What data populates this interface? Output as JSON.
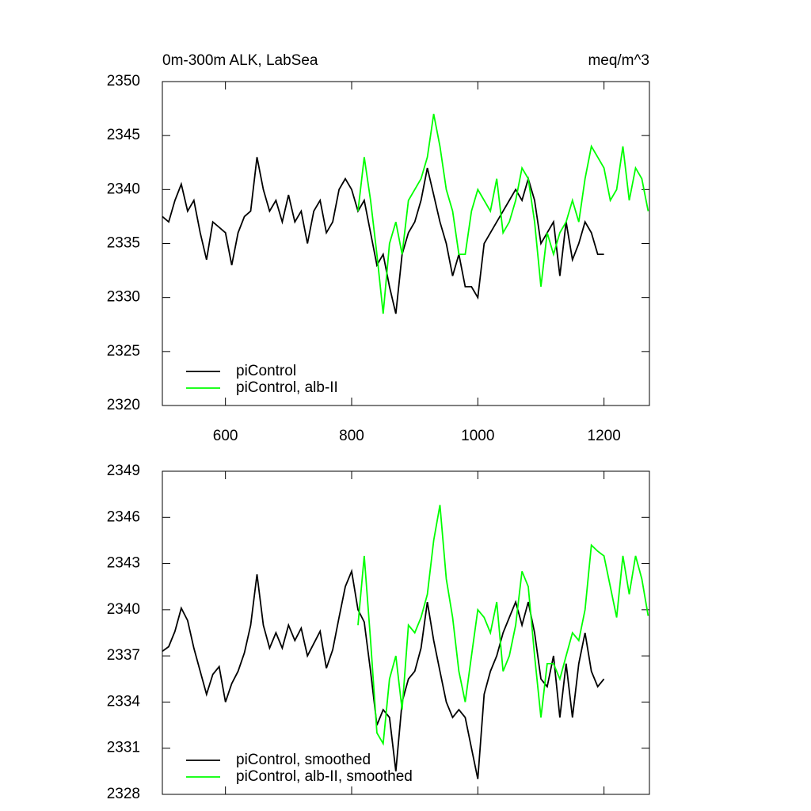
{
  "chart_data": [
    {
      "type": "line",
      "title": "0m-300m ALK, LabSea",
      "units_label": "meq/m^3",
      "xlim": [
        500,
        1272
      ],
      "xticks": [
        600,
        800,
        1000,
        1200
      ],
      "xtick_labels": true,
      "ylim": [
        2320,
        2350
      ],
      "yticks": [
        2320,
        2325,
        2330,
        2335,
        2340,
        2345,
        2350
      ],
      "legend": "lower left",
      "series": [
        {
          "name": "piControl",
          "color": "#000000",
          "x": [
            500,
            510,
            520,
            530,
            540,
            550,
            560,
            570,
            580,
            590,
            600,
            610,
            620,
            630,
            640,
            650,
            660,
            670,
            680,
            690,
            700,
            710,
            720,
            730,
            740,
            750,
            760,
            770,
            780,
            790,
            800,
            810,
            820,
            830,
            840,
            850,
            860,
            870,
            880,
            890,
            900,
            910,
            920,
            930,
            940,
            950,
            960,
            970,
            980,
            990,
            1000,
            1010,
            1020,
            1030,
            1040,
            1050,
            1060,
            1070,
            1080,
            1090,
            1100,
            1110,
            1120,
            1130,
            1140,
            1150,
            1160,
            1170,
            1180,
            1190,
            1200
          ],
          "values": [
            2337.5,
            2337,
            2339,
            2340.5,
            2338,
            2339,
            2336,
            2333.5,
            2337,
            2336.5,
            2336,
            2333,
            2336,
            2337.5,
            2338,
            2343,
            2340,
            2338,
            2339,
            2337,
            2339.5,
            2337,
            2338,
            2335,
            2338,
            2339,
            2336,
            2337,
            2340,
            2341,
            2340,
            2338,
            2339,
            2336,
            2333,
            2334,
            2331,
            2328.5,
            2334,
            2336,
            2337,
            2339,
            2342,
            2339.5,
            2337,
            2335,
            2332,
            2334,
            2331,
            2331,
            2330,
            2335,
            2336,
            2337,
            2338,
            2339,
            2340,
            2339,
            2341,
            2339,
            2335,
            2336,
            2337,
            2332,
            2337,
            2333.5,
            2335,
            2337,
            2336,
            2334,
            2334
          ]
        },
        {
          "name": "piControl, alb-II",
          "color": "#00ff00",
          "x": [
            810,
            820,
            830,
            840,
            850,
            860,
            870,
            880,
            890,
            900,
            910,
            920,
            930,
            940,
            950,
            960,
            970,
            980,
            990,
            1000,
            1010,
            1020,
            1030,
            1040,
            1050,
            1060,
            1070,
            1080,
            1090,
            1100,
            1110,
            1120,
            1130,
            1140,
            1150,
            1160,
            1170,
            1180,
            1190,
            1200,
            1210,
            1220,
            1230,
            1240,
            1250,
            1260,
            1270
          ],
          "values": [
            2338,
            2343,
            2339,
            2334,
            2328.5,
            2335,
            2337,
            2334,
            2339,
            2340,
            2341,
            2343,
            2347,
            2344,
            2340,
            2338,
            2334,
            2334,
            2338,
            2340,
            2339,
            2338,
            2341,
            2336,
            2337,
            2339,
            2342,
            2341,
            2337,
            2331,
            2336,
            2334,
            2336,
            2337,
            2339,
            2337,
            2341,
            2344,
            2343,
            2342,
            2339,
            2340,
            2344,
            2339,
            2342,
            2341,
            2338
          ]
        }
      ]
    },
    {
      "type": "line",
      "xlim": [
        500,
        1272
      ],
      "xticks": [
        600,
        800,
        1000,
        1200
      ],
      "xtick_labels": false,
      "ylim": [
        2328,
        2349
      ],
      "yticks": [
        2328,
        2331,
        2334,
        2337,
        2340,
        2343,
        2346,
        2349
      ],
      "legend": "lower left",
      "series": [
        {
          "name": "piControl, smoothed",
          "color": "#000000",
          "x": [
            500,
            510,
            520,
            530,
            540,
            550,
            560,
            570,
            580,
            590,
            600,
            610,
            620,
            630,
            640,
            650,
            660,
            670,
            680,
            690,
            700,
            710,
            720,
            730,
            740,
            750,
            760,
            770,
            780,
            790,
            800,
            810,
            820,
            830,
            840,
            850,
            860,
            870,
            880,
            890,
            900,
            910,
            920,
            930,
            940,
            950,
            960,
            970,
            980,
            990,
            1000,
            1010,
            1020,
            1030,
            1040,
            1050,
            1060,
            1070,
            1080,
            1090,
            1100,
            1110,
            1120,
            1130,
            1140,
            1150,
            1160,
            1170,
            1180,
            1190,
            1200
          ],
          "values": [
            2337.3,
            2337.6,
            2338.6,
            2340.1,
            2339.3,
            2337.5,
            2336,
            2334.5,
            2335.8,
            2336.3,
            2334,
            2335.2,
            2336,
            2337.2,
            2339,
            2342.3,
            2339,
            2337.5,
            2338.5,
            2337.5,
            2339,
            2338,
            2338.8,
            2337,
            2337.8,
            2338.6,
            2336.2,
            2337.4,
            2339.5,
            2341.5,
            2342.5,
            2340,
            2339.2,
            2336,
            2332.5,
            2333.5,
            2333,
            2329.5,
            2334,
            2335.5,
            2336,
            2337.5,
            2340.5,
            2338,
            2336,
            2334,
            2333,
            2333.5,
            2333,
            2331,
            2329,
            2334.5,
            2336,
            2337,
            2338.5,
            2339.5,
            2340.5,
            2339,
            2340.5,
            2338.5,
            2335.5,
            2335,
            2337,
            2333,
            2336.5,
            2333,
            2336.5,
            2338.5,
            2336,
            2335,
            2335.5
          ]
        },
        {
          "name": "piControl, alb-II, smoothed",
          "color": "#00ff00",
          "x": [
            810,
            820,
            830,
            840,
            850,
            860,
            870,
            880,
            890,
            900,
            910,
            920,
            930,
            940,
            950,
            960,
            970,
            980,
            990,
            1000,
            1010,
            1020,
            1030,
            1040,
            1050,
            1060,
            1070,
            1080,
            1090,
            1100,
            1110,
            1120,
            1130,
            1140,
            1150,
            1160,
            1170,
            1180,
            1190,
            1200,
            1210,
            1220,
            1230,
            1240,
            1250,
            1260,
            1270
          ],
          "values": [
            2339,
            2343.5,
            2338,
            2332,
            2331.3,
            2335.5,
            2337,
            2333.5,
            2339,
            2338.5,
            2339.5,
            2341,
            2344.5,
            2346.8,
            2342,
            2339.5,
            2336,
            2334,
            2337,
            2340,
            2339.5,
            2338.5,
            2340.5,
            2336,
            2337,
            2339,
            2342.5,
            2341.5,
            2337,
            2333,
            2336.5,
            2336.5,
            2335.5,
            2337,
            2338.5,
            2338,
            2340,
            2344.2,
            2343.8,
            2343.5,
            2341.5,
            2339.5,
            2343.5,
            2341,
            2343.5,
            2342,
            2339.6
          ]
        }
      ]
    }
  ]
}
